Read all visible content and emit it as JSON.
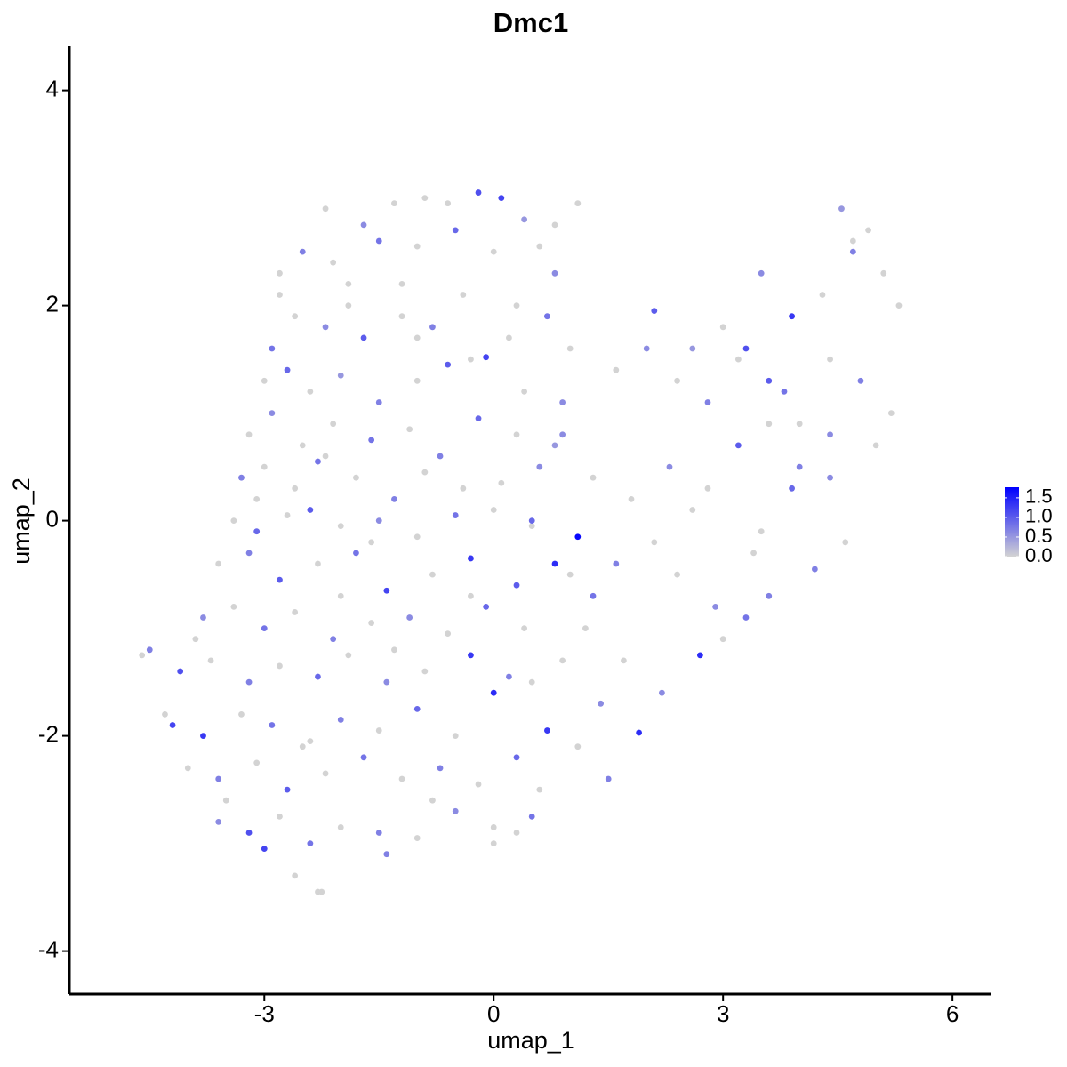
{
  "chart_data": {
    "type": "scatter",
    "title": "Dmc1",
    "xlabel": "umap_1",
    "ylabel": "umap_2",
    "xlim": [
      -5.55,
      6.51
    ],
    "ylim": [
      -4.4,
      4.41
    ],
    "xticks": [
      -3,
      0,
      3,
      6
    ],
    "yticks": [
      -4,
      -2,
      0,
      2,
      4
    ],
    "color_low": "#d3d3d3",
    "color_high": "#0000ff",
    "clim": [
      0,
      1.77
    ],
    "cticks": [
      {
        "value": 0,
        "label": "0.0"
      },
      0.5,
      {
        "value": 1,
        "label": "1.0"
      },
      1.5
    ],
    "x": [
      -2.2,
      -1.7,
      -1.3,
      -0.9,
      -0.6,
      -0.2,
      0.1,
      0.4,
      0.8,
      1.1,
      -2.5,
      -2.1,
      -1.5,
      -1.0,
      -0.5,
      0.0,
      0.6,
      0.8,
      -2.8,
      -1.9,
      -2.9,
      -2.6,
      -2.2,
      -1.7,
      -1.2,
      -0.8,
      -0.3,
      0.2,
      0.7,
      1.0,
      -3.0,
      -2.7,
      -2.4,
      -2.0,
      -1.5,
      -1.0,
      -0.6,
      -0.1,
      0.4,
      0.9,
      -3.2,
      -2.9,
      -2.5,
      -2.1,
      -1.6,
      -1.1,
      -0.7,
      -0.2,
      0.3,
      0.8,
      -3.3,
      -3.0,
      -2.6,
      -2.3,
      -1.8,
      -1.3,
      -0.9,
      -0.4,
      0.1,
      0.6,
      -3.4,
      -3.1,
      -2.7,
      -2.4,
      -2.0,
      -1.5,
      -1.0,
      -0.5,
      0.0,
      0.5,
      -3.6,
      -3.2,
      -2.8,
      -2.3,
      -1.8,
      -1.4,
      -0.8,
      -0.3,
      0.3,
      0.8,
      -3.8,
      -3.4,
      -3.0,
      -2.6,
      -2.1,
      -1.6,
      -1.1,
      -0.6,
      -0.1,
      0.4,
      -4.1,
      -3.7,
      -3.2,
      -2.8,
      -2.3,
      -1.9,
      -1.4,
      -0.9,
      -0.3,
      0.2,
      -4.2,
      -3.8,
      -3.3,
      -2.9,
      -2.4,
      -2.0,
      -1.5,
      -1.0,
      -0.5,
      0.0,
      -4.0,
      -3.6,
      -3.1,
      -2.7,
      -2.2,
      -1.7,
      -1.2,
      -0.7,
      -0.2,
      0.3,
      -3.6,
      -3.2,
      -2.8,
      -2.4,
      -2.0,
      -1.5,
      -1.0,
      -0.5,
      0.0,
      0.5,
      -3.0,
      -2.6,
      -2.3,
      -1.4,
      0.0,
      0.3,
      -4.6,
      -4.5,
      -4.3,
      -2.25,
      0.5,
      1.1,
      1.3,
      0.9,
      1.4,
      1.1,
      1.5,
      0.7,
      1.2,
      0.9,
      1.7,
      2.2,
      2.7,
      3.0,
      3.3,
      3.6,
      1.9,
      2.4,
      2.9,
      3.4,
      1.8,
      2.3,
      2.8,
      3.2,
      3.6,
      4.0,
      4.4,
      1.6,
      2.1,
      2.6,
      3.5,
      3.9,
      4.2,
      4.6,
      5.0,
      5.2,
      4.8,
      4.4,
      3.8,
      3.3,
      2.1,
      2.6,
      3.0,
      3.5,
      3.9,
      4.3,
      4.7,
      5.1,
      5.3,
      4.9,
      1.6,
      2.0,
      2.4,
      2.8,
      3.2,
      3.6,
      4.0,
      4.4,
      4.55,
      4.7,
      -2.8,
      -1.9,
      -1.2,
      -0.4,
      0.3,
      -3.1,
      -2.0,
      -0.8,
      0.5,
      -1.6,
      -3.9,
      -3.5,
      -2.5,
      -1.3,
      -0.3,
      0.6,
      1.0,
      1.3,
      -2.2,
      -1.0
    ],
    "values": [
      2.9,
      2.75,
      2.95,
      3.0,
      2.95,
      3.05,
      3.0,
      2.8,
      2.75,
      2.95,
      2.5,
      2.4,
      2.6,
      2.55,
      2.7,
      2.5,
      2.55,
      2.3,
      2.1,
      2.2,
      1.6,
      1.9,
      1.8,
      1.7,
      1.9,
      1.8,
      1.5,
      1.7,
      1.9,
      1.6,
      1.3,
      1.4,
      1.2,
      1.35,
      1.1,
      1.3,
      1.45,
      1.52,
      1.2,
      1.1,
      0.8,
      1.0,
      0.7,
      0.9,
      0.75,
      0.85,
      0.6,
      0.95,
      0.8,
      0.7,
      0.4,
      0.5,
      0.3,
      0.55,
      0.4,
      0.2,
      0.45,
      0.3,
      0.35,
      0.5,
      0.0,
      -0.1,
      0.05,
      0.1,
      -0.05,
      0.0,
      -0.15,
      0.05,
      0.1,
      -0.05,
      -0.4,
      -0.3,
      -0.55,
      -0.4,
      -0.3,
      -0.65,
      -0.5,
      -0.35,
      -0.6,
      -0.4,
      -0.9,
      -0.8,
      -1.0,
      -0.85,
      -1.1,
      -0.95,
      -0.9,
      -1.05,
      -0.8,
      -1.0,
      -1.4,
      -1.3,
      -1.5,
      -1.35,
      -1.45,
      -1.25,
      -1.5,
      -1.4,
      -1.25,
      -1.45,
      -1.9,
      -2.0,
      -1.8,
      -1.9,
      -2.05,
      -1.85,
      -1.95,
      -1.75,
      -2.0,
      -1.6,
      -2.3,
      -2.4,
      -2.25,
      -2.5,
      -2.35,
      -2.2,
      -2.4,
      -2.3,
      -2.45,
      -2.2,
      -2.8,
      -2.9,
      -2.75,
      -3.0,
      -2.85,
      -2.9,
      -2.95,
      -2.7,
      -2.85,
      -2.75,
      -3.05,
      -3.3,
      -3.45,
      -3.1,
      -3.0,
      -2.9,
      -1.25,
      -1.2,
      -1.8,
      -3.45,
      0.0,
      -0.15,
      -0.7,
      -1.3,
      -1.7,
      -2.1,
      -2.4,
      -1.95,
      -1.0,
      0.8,
      -1.3,
      -1.6,
      -1.25,
      -1.1,
      -0.9,
      -0.7,
      -1.97,
      -0.5,
      -0.8,
      -0.3,
      0.2,
      0.5,
      0.3,
      0.7,
      0.9,
      0.5,
      0.4,
      -0.4,
      -0.2,
      0.1,
      -0.1,
      0.3,
      -0.45,
      -0.2,
      0.7,
      1.0,
      1.3,
      1.5,
      1.2,
      1.6,
      1.95,
      1.6,
      1.8,
      2.3,
      1.9,
      2.1,
      2.5,
      2.3,
      2.0,
      2.7,
      1.4,
      1.6,
      1.3,
      1.1,
      1.5,
      1.3,
      0.9,
      0.8,
      2.9,
      2.6,
      2.3,
      2.0,
      2.2,
      2.1,
      2.0,
      0.2,
      -0.7,
      -2.6,
      -1.5,
      -0.2,
      -1.1,
      -2.6,
      -2.1,
      -1.2,
      -0.7,
      -2.5,
      -0.5,
      0.4,
      0.6,
      1.7
    ],
    "expression": [
      0,
      0.6,
      0,
      0,
      0,
      1.1,
      1.2,
      0.5,
      0,
      0,
      0.7,
      0,
      0.8,
      0,
      0.9,
      0,
      0,
      0.6,
      0,
      0,
      0.8,
      0,
      0.6,
      1.0,
      0,
      0.7,
      0,
      0,
      0.8,
      0,
      0,
      0.9,
      0,
      0.5,
      0.7,
      0,
      1.0,
      1.2,
      0,
      0.6,
      0,
      0.6,
      0,
      0,
      0.8,
      0,
      0.7,
      0.9,
      0,
      0.5,
      0.7,
      0,
      0,
      0.8,
      0,
      0.7,
      0,
      0,
      0,
      0.6,
      0,
      0.9,
      0,
      1.0,
      0,
      0.6,
      0,
      0.8,
      0,
      0,
      0,
      0.7,
      1.0,
      0,
      0.8,
      1.2,
      0,
      1.3,
      1.0,
      1.4,
      0.6,
      0,
      0.8,
      0,
      0.7,
      0,
      0.6,
      0,
      0.9,
      0,
      1.1,
      0,
      0.7,
      0,
      0.9,
      0,
      0.6,
      0,
      1.3,
      0.7,
      1.2,
      1.3,
      0,
      0.8,
      0,
      0.7,
      0,
      0.9,
      0,
      1.4,
      0,
      0.7,
      0,
      1.0,
      0,
      0.8,
      0,
      0.7,
      0,
      0.9,
      0.6,
      1.1,
      0,
      0.8,
      0,
      0.7,
      0,
      0.6,
      0,
      0.8,
      1.2,
      0,
      0,
      0.7,
      0,
      0,
      0,
      0.7,
      0,
      0,
      0.9,
      1.7,
      0.8,
      0,
      0.6,
      0,
      0.7,
      1.3,
      0,
      0.6,
      0,
      0.6,
      1.4,
      0,
      0.8,
      0.7,
      1.4,
      0,
      0.6,
      0,
      0,
      0.6,
      0,
      1.0,
      0,
      0.7,
      0.6,
      0.7,
      0,
      0,
      0,
      0.9,
      0.7,
      0,
      0,
      0,
      0.7,
      0,
      0.8,
      1.1,
      1.0,
      0.5,
      0,
      0.6,
      1.3,
      0,
      0.7,
      0,
      0,
      0,
      0,
      0.6,
      0,
      0.7,
      0,
      1.0,
      0,
      0.6,
      0.5,
      0,
      0,
      0,
      0,
      0,
      0,
      0,
      0,
      0,
      0,
      0,
      0,
      0,
      0,
      0,
      0,
      0,
      0,
      0,
      0,
      0
    ]
  }
}
